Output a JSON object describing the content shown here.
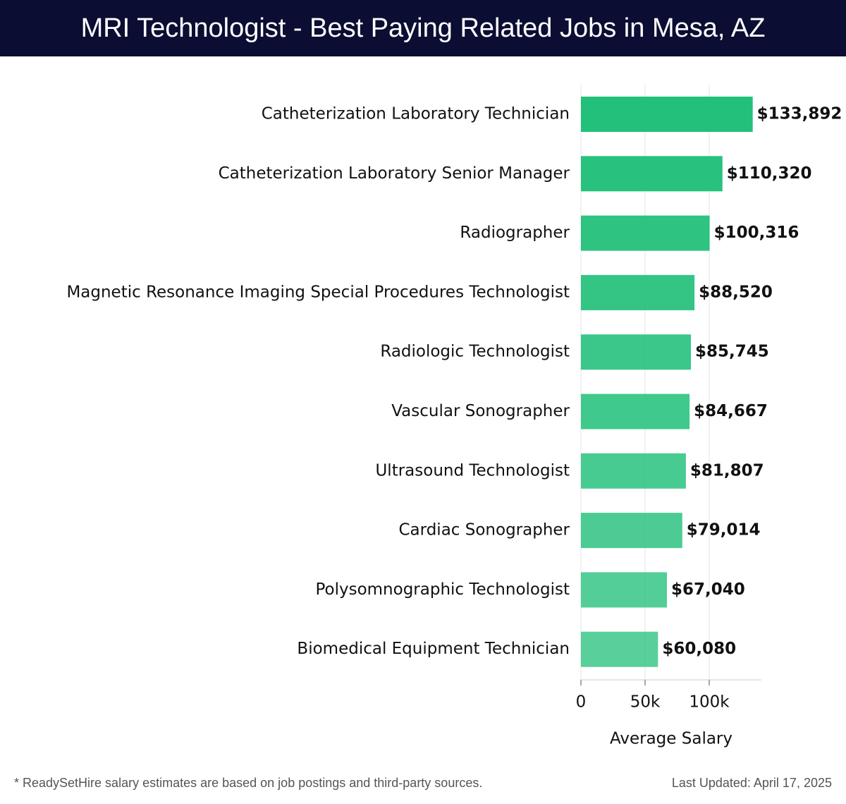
{
  "header": {
    "title": "MRI Technologist - Best Paying Related Jobs in Mesa, AZ"
  },
  "chart_data": {
    "type": "bar",
    "orientation": "horizontal",
    "categories": [
      "Catheterization Laboratory Technician",
      "Catheterization Laboratory Senior Manager",
      "Radiographer",
      "Magnetic Resonance Imaging Special Procedures Technologist",
      "Radiologic Technologist",
      "Vascular Sonographer",
      "Ultrasound Technologist",
      "Cardiac Sonographer",
      "Polysomnographic Technologist",
      "Biomedical Equipment Technician"
    ],
    "values": [
      133892,
      110320,
      100316,
      88520,
      85745,
      84667,
      81807,
      79014,
      67040,
      60080
    ],
    "value_labels": [
      "$133,892",
      "$110,320",
      "$100,316",
      "$88,520",
      "$85,745",
      "$84,667",
      "$81,807",
      "$79,014",
      "$67,040",
      "$60,080"
    ],
    "xlabel": "Average Salary",
    "xticks": [
      {
        "value": 0,
        "label": "0"
      },
      {
        "value": 50000,
        "label": "50k"
      },
      {
        "value": 100000,
        "label": "100k"
      }
    ],
    "xlim": [
      0,
      140000
    ],
    "grid": true,
    "bar_color": "#22c07a"
  },
  "footer": {
    "note": "* ReadySetHire salary estimates are based on job postings and third-party sources.",
    "updated": "Last Updated: April 17, 2025"
  }
}
